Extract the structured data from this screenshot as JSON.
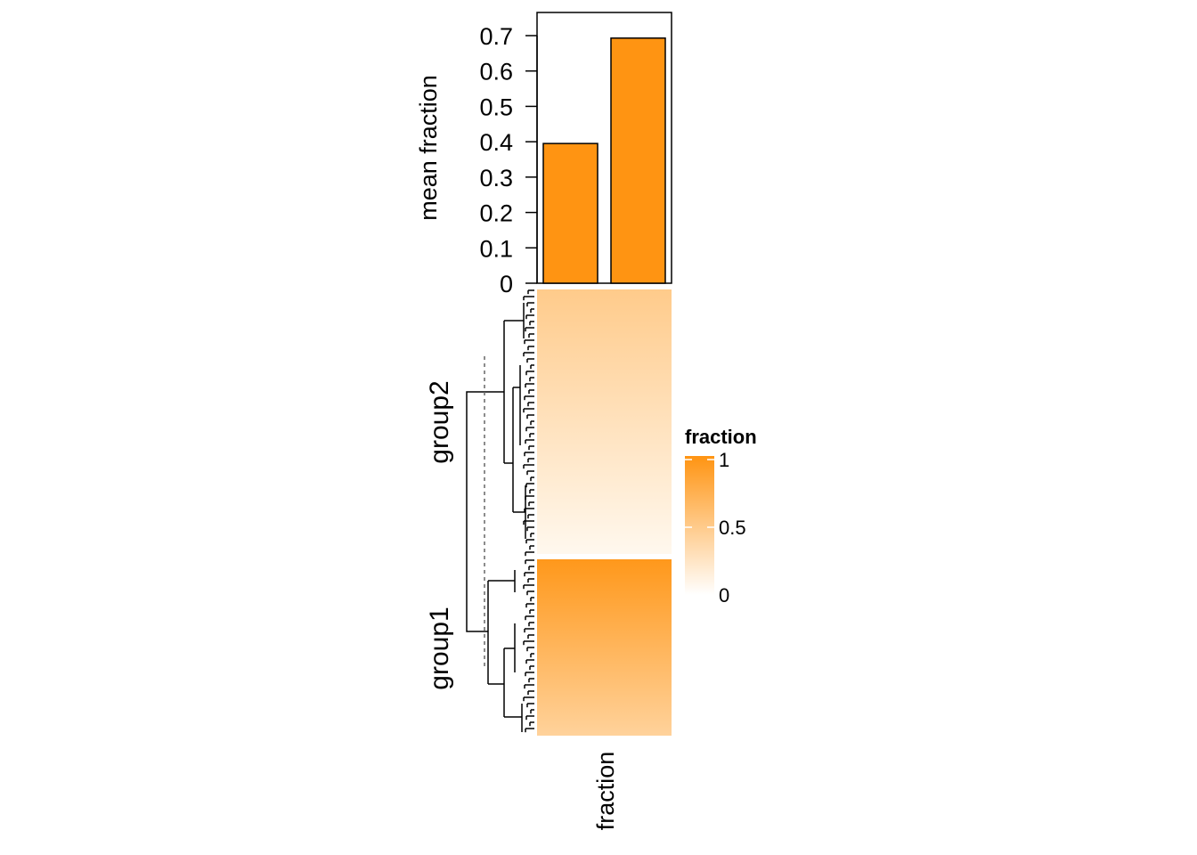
{
  "colors": {
    "bar_fill": "#FF9412",
    "bar_stroke": "#000000",
    "heat_low": "#FFFFFF",
    "heat_high": "#FF9412",
    "dendrogram": "#000000",
    "cut_line": "#666666"
  },
  "chart_data": {
    "type": "heatmap",
    "column_label": "fraction",
    "row_groups": [
      {
        "name": "group2",
        "fraction_top": 0.49,
        "fraction_bottom": 0.07
      },
      {
        "name": "group1",
        "fraction_top": 0.96,
        "fraction_bottom": 0.42
      }
    ],
    "legend": {
      "title": "fraction",
      "range": [
        0,
        1
      ],
      "ticks": [
        "1",
        "0.5",
        "0"
      ],
      "tick_values": [
        1,
        0.5,
        0
      ],
      "placement": "right"
    },
    "annotation_bar": {
      "type": "bar",
      "ylabel": "mean fraction",
      "ylim": [
        0,
        0.75
      ],
      "yticks": [
        "0",
        "0.1",
        "0.2",
        "0.3",
        "0.4",
        "0.5",
        "0.6",
        "0.7"
      ],
      "ytick_values": [
        0,
        0.1,
        0.2,
        0.3,
        0.4,
        0.5,
        0.6,
        0.7
      ],
      "values": [
        0.395,
        0.693
      ]
    },
    "dendrogram_cut": true
  }
}
